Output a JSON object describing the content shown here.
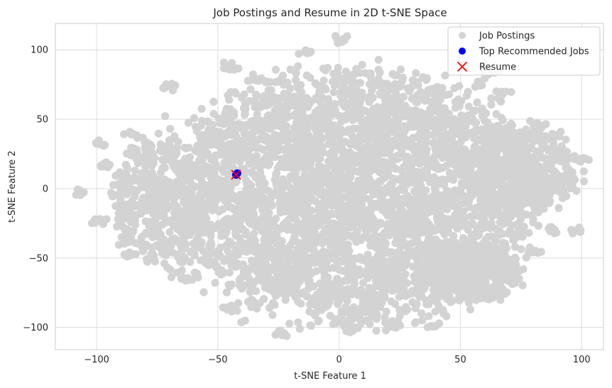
{
  "chart_data": {
    "type": "scatter",
    "title": "Job Postings and Resume in 2D t-SNE Space",
    "xlabel": "t-SNE Feature 1",
    "ylabel": "t-SNE Feature 2",
    "xlim": [
      -117,
      109
    ],
    "ylim": [
      -116,
      119
    ],
    "xticks": [
      -100,
      -50,
      0,
      50,
      100
    ],
    "yticks": [
      -100,
      -50,
      0,
      50,
      100
    ],
    "xtick_labels": [
      "−100",
      "−50",
      "0",
      "50",
      "100"
    ],
    "ytick_labels": [
      "−100",
      "−50",
      "0",
      "50",
      "100"
    ],
    "grid": true,
    "legend_position": "top-right",
    "series": [
      {
        "name": "Job Postings",
        "marker": "circle",
        "color": "#d3d3d3",
        "cluster_regions": [
          {
            "cx": 5,
            "cy": -5,
            "rx": 75,
            "ry": 90,
            "density": "very dense"
          },
          {
            "cx": 75,
            "cy": 15,
            "rx": 25,
            "ry": 30,
            "density": "medium"
          },
          {
            "cx": -75,
            "cy": -10,
            "rx": 20,
            "ry": 45,
            "density": "medium"
          },
          {
            "cx": 55,
            "cy": -60,
            "rx": 20,
            "ry": 20,
            "density": "medium"
          }
        ],
        "notable_points": [
          {
            "x": -106,
            "y": -4
          },
          {
            "x": -98,
            "y": 33
          },
          {
            "x": -96,
            "y": 17
          },
          {
            "x": -99,
            "y": -24
          },
          {
            "x": -86,
            "y": 39
          },
          {
            "x": -86,
            "y": -48
          },
          {
            "x": -80,
            "y": -12
          },
          {
            "x": -70,
            "y": 74
          },
          {
            "x": -61,
            "y": -64
          },
          {
            "x": -45,
            "y": -87
          },
          {
            "x": -35,
            "y": -85
          },
          {
            "x": -24,
            "y": -105
          },
          {
            "x": -45,
            "y": 88
          },
          {
            "x": -35,
            "y": 79
          },
          {
            "x": -13,
            "y": 98
          },
          {
            "x": 0,
            "y": 109
          },
          {
            "x": 5,
            "y": -101
          },
          {
            "x": 22,
            "y": -98
          },
          {
            "x": 40,
            "y": -98
          },
          {
            "x": 60,
            "y": -78
          },
          {
            "x": 67,
            "y": 68
          },
          {
            "x": 69,
            "y": -64
          },
          {
            "x": 75,
            "y": -32
          },
          {
            "x": 80,
            "y": -45
          },
          {
            "x": 82,
            "y": 45
          },
          {
            "x": 88,
            "y": -30
          },
          {
            "x": 92,
            "y": 24
          },
          {
            "x": 95,
            "y": 5
          },
          {
            "x": 98,
            "y": -30
          },
          {
            "x": 100,
            "y": 21
          },
          {
            "x": 63,
            "y": 85
          },
          {
            "x": 58,
            "y": 75
          }
        ]
      },
      {
        "name": "Top Recommended Jobs",
        "marker": "circle",
        "color": "#0000ff",
        "points": [
          {
            "x": -42,
            "y": 11
          },
          {
            "x": -42.5,
            "y": 10
          }
        ]
      },
      {
        "name": "Resume",
        "marker": "x",
        "color": "#ff0000",
        "points": [
          {
            "x": -42.5,
            "y": 10
          }
        ]
      }
    ]
  },
  "colors": {
    "grid": "#dcdcdc",
    "frame": "#cccccc",
    "background": "#ffffff"
  }
}
